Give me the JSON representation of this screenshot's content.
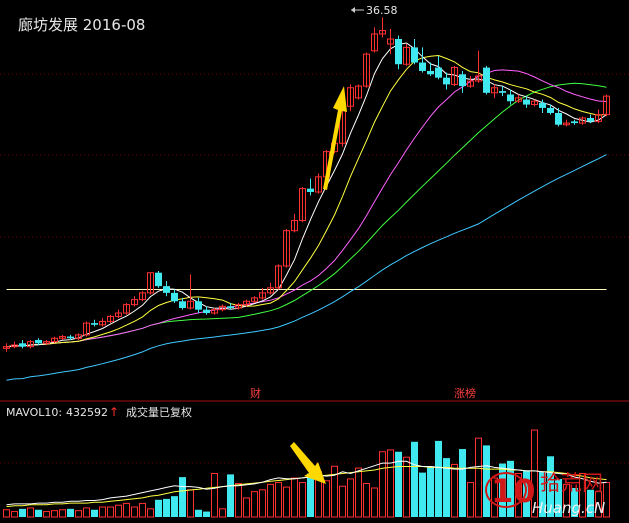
{
  "header": {
    "title": "廊坊发展 2016-08"
  },
  "price_panel": {
    "max_label": "36.58",
    "event_tags": [
      "财",
      "涨榜"
    ]
  },
  "volume_panel": {
    "indicator_label": "MAVOL10:",
    "indicator_value": "432592",
    "arrow": "↑",
    "note": "成交量已复权"
  },
  "watermark": {
    "main": "拾荒网",
    "num": "10",
    "site": "Huang.cN",
    "brand_color": "#d01818"
  },
  "colors": {
    "up": "#ff3030",
    "down": "#40e8f0",
    "grid": "#700000",
    "ma5": "#ffffff",
    "ma10": "#ffff40",
    "ma20": "#ff60ff",
    "ma30": "#40ff40",
    "ma60": "#40c8ff",
    "ma120": "#ffffc0",
    "annotation": "#ffd800"
  },
  "chart_data": {
    "type": "candlestick",
    "price_range": [
      15.85,
      37.62
    ],
    "volume_range": [
      0,
      960000
    ],
    "candles": [
      [
        16.9,
        17.0,
        17.2,
        16.7
      ],
      [
        17.0,
        17.1,
        17.3,
        16.9
      ],
      [
        17.2,
        17.0,
        17.4,
        16.9
      ],
      [
        17.0,
        17.3,
        17.4,
        16.9
      ],
      [
        17.4,
        17.2,
        17.5,
        17.1
      ],
      [
        17.2,
        17.3,
        17.4,
        17.1
      ],
      [
        17.3,
        17.5,
        17.6,
        17.2
      ],
      [
        17.5,
        17.6,
        17.7,
        17.4
      ],
      [
        17.6,
        17.5,
        17.7,
        17.4
      ],
      [
        17.5,
        17.7,
        17.8,
        17.4
      ],
      [
        17.7,
        18.4,
        18.5,
        17.6
      ],
      [
        18.4,
        18.3,
        18.6,
        18.2
      ],
      [
        18.3,
        18.5,
        18.7,
        18.2
      ],
      [
        18.5,
        18.8,
        18.9,
        18.4
      ],
      [
        18.8,
        19.0,
        19.2,
        18.7
      ],
      [
        19.0,
        19.5,
        19.6,
        18.9
      ],
      [
        19.5,
        19.8,
        20.0,
        19.4
      ],
      [
        19.8,
        20.2,
        20.3,
        19.7
      ],
      [
        20.2,
        21.4,
        21.4,
        20.1
      ],
      [
        21.4,
        20.6,
        21.5,
        20.5
      ],
      [
        20.6,
        20.2,
        20.9,
        20.0
      ],
      [
        20.2,
        19.7,
        20.4,
        19.6
      ],
      [
        19.7,
        19.3,
        19.9,
        19.2
      ],
      [
        19.3,
        19.7,
        21.3,
        19.2
      ],
      [
        19.7,
        19.2,
        19.9,
        19.0
      ],
      [
        19.2,
        19.0,
        19.4,
        18.9
      ],
      [
        19.0,
        19.2,
        19.3,
        18.9
      ],
      [
        19.2,
        19.4,
        19.5,
        19.1
      ],
      [
        19.4,
        19.3,
        19.6,
        19.2
      ],
      [
        19.3,
        19.5,
        19.6,
        19.2
      ],
      [
        19.5,
        19.7,
        19.8,
        19.4
      ],
      [
        19.7,
        19.9,
        20.0,
        19.6
      ],
      [
        19.9,
        20.2,
        20.5,
        19.8
      ],
      [
        20.2,
        20.5,
        20.8,
        20.1
      ],
      [
        20.5,
        21.8,
        21.9,
        20.4
      ],
      [
        21.8,
        23.9,
        24.0,
        21.7
      ],
      [
        23.9,
        24.5,
        24.9,
        23.8
      ],
      [
        24.5,
        26.4,
        26.5,
        24.4
      ],
      [
        26.4,
        26.2,
        27.0,
        26.0
      ],
      [
        26.2,
        27.1,
        27.3,
        26.1
      ],
      [
        27.1,
        28.6,
        28.7,
        27.0
      ],
      [
        28.6,
        29.1,
        29.5,
        28.5
      ],
      [
        29.1,
        31.3,
        31.4,
        28.9
      ],
      [
        31.3,
        32.4,
        32.6,
        31.0
      ],
      [
        31.8,
        32.5,
        32.6,
        31.7
      ],
      [
        32.5,
        34.4,
        34.5,
        32.4
      ],
      [
        34.6,
        35.6,
        36.0,
        34.5
      ],
      [
        35.6,
        35.8,
        36.58,
        35.4
      ],
      [
        35.0,
        35.3,
        35.9,
        34.4
      ],
      [
        35.3,
        33.8,
        35.5,
        33.5
      ],
      [
        33.8,
        34.8,
        35.0,
        33.7
      ],
      [
        34.8,
        33.9,
        35.3,
        33.8
      ],
      [
        33.9,
        33.4,
        34.8,
        33.3
      ],
      [
        33.4,
        33.2,
        33.9,
        33.1
      ],
      [
        33.6,
        33.0,
        34.3,
        32.9
      ],
      [
        33.0,
        32.6,
        33.3,
        32.3
      ],
      [
        32.6,
        33.6,
        33.7,
        32.5
      ],
      [
        33.2,
        32.5,
        33.4,
        32.1
      ],
      [
        32.5,
        32.8,
        33.1,
        32.4
      ],
      [
        32.8,
        33.1,
        34.6,
        32.7
      ],
      [
        33.6,
        32.1,
        33.7,
        32.0
      ],
      [
        32.1,
        32.4,
        32.6,
        31.8
      ],
      [
        32.2,
        32.1,
        32.5,
        31.9
      ],
      [
        32.0,
        31.6,
        32.3,
        31.4
      ],
      [
        31.6,
        31.8,
        32.0,
        31.5
      ],
      [
        31.7,
        31.4,
        31.9,
        31.2
      ],
      [
        31.4,
        31.6,
        31.7,
        31.3
      ],
      [
        31.5,
        31.2,
        31.7,
        30.9
      ],
      [
        31.2,
        30.9,
        31.4,
        30.8
      ],
      [
        30.9,
        30.2,
        31.2,
        30.1
      ],
      [
        30.2,
        30.3,
        30.5,
        30.1
      ],
      [
        30.4,
        30.3,
        30.5,
        30.2
      ],
      [
        30.3,
        30.6,
        30.7,
        30.2
      ],
      [
        30.6,
        30.4,
        30.8,
        30.3
      ],
      [
        30.4,
        30.8,
        31.1,
        30.3
      ],
      [
        30.8,
        31.9,
        32.0,
        30.7
      ]
    ],
    "volumes": [
      80000,
      60000,
      90000,
      100000,
      80000,
      60000,
      70000,
      80000,
      90000,
      70000,
      100000,
      80000,
      110000,
      110000,
      130000,
      150000,
      110000,
      150000,
      90000,
      190000,
      200000,
      230000,
      440000,
      300000,
      80000,
      60000,
      480000,
      90000,
      470000,
      370000,
      210000,
      280000,
      300000,
      360000,
      380000,
      330000,
      430000,
      380000,
      480000,
      500000,
      400000,
      560000,
      340000,
      420000,
      540000,
      370000,
      320000,
      720000,
      740000,
      720000,
      660000,
      830000,
      490000,
      560000,
      840000,
      650000,
      580000,
      750000,
      380000,
      870000,
      790000,
      430000,
      590000,
      620000,
      480000,
      510000,
      960000,
      500000,
      670000,
      420000,
      360000,
      320000,
      480000,
      300000,
      280000,
      380000
    ],
    "volume_ma5": [
      0.14,
      0.15,
      0.15,
      0.15,
      0.16,
      0.16,
      0.17,
      0.17,
      0.18,
      0.18,
      0.19,
      0.19,
      0.2,
      0.22,
      0.23,
      0.24,
      0.26,
      0.28,
      0.3,
      0.32,
      0.34,
      0.36,
      0.35,
      0.35,
      0.34,
      0.32,
      0.33,
      0.35,
      0.36,
      0.36,
      0.37,
      0.38,
      0.4,
      0.43,
      0.45,
      0.44,
      0.44,
      0.45,
      0.46,
      0.48,
      0.47,
      0.48,
      0.52,
      0.5,
      0.53,
      0.56,
      0.59,
      0.62,
      0.62,
      0.64,
      0.64,
      0.6,
      0.58,
      0.58,
      0.57,
      0.56,
      0.55,
      0.55,
      0.57,
      0.58,
      0.59,
      0.57,
      0.56,
      0.55,
      0.54,
      0.53,
      0.53,
      0.52,
      0.51,
      0.5,
      0.49,
      0.46,
      0.44,
      0.41,
      0.39,
      0.4
    ],
    "volume_ma10": [
      0.12,
      0.13,
      0.13,
      0.14,
      0.14,
      0.14,
      0.15,
      0.15,
      0.16,
      0.16,
      0.16,
      0.17,
      0.17,
      0.18,
      0.19,
      0.2,
      0.21,
      0.22,
      0.24,
      0.25,
      0.27,
      0.29,
      0.3,
      0.31,
      0.32,
      0.33,
      0.34,
      0.35,
      0.36,
      0.37,
      0.38,
      0.39,
      0.4,
      0.41,
      0.42,
      0.43,
      0.44,
      0.45,
      0.46,
      0.47,
      0.48,
      0.49,
      0.5,
      0.51,
      0.52,
      0.53,
      0.54,
      0.56,
      0.57,
      0.58,
      0.58,
      0.58,
      0.58,
      0.57,
      0.57,
      0.57,
      0.56,
      0.56,
      0.56,
      0.56,
      0.55,
      0.55,
      0.55,
      0.54,
      0.54,
      0.53,
      0.53,
      0.52,
      0.52,
      0.51,
      0.5,
      0.48,
      0.47,
      0.45,
      0.44,
      0.43
    ]
  }
}
